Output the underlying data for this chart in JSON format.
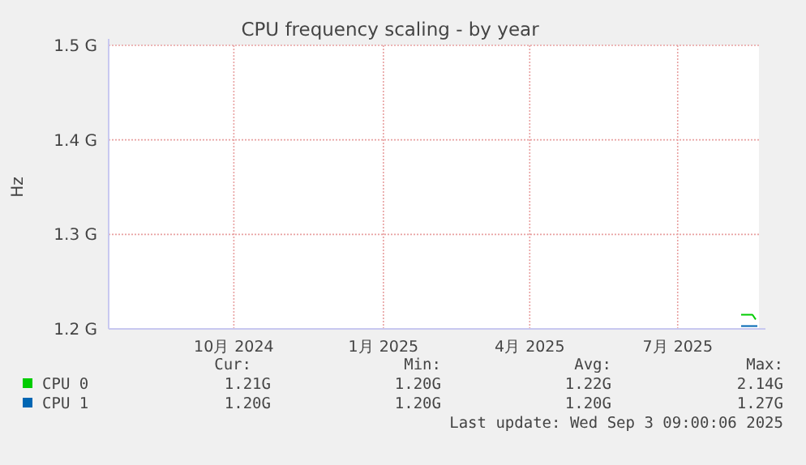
{
  "chart_data": {
    "type": "line",
    "title": "CPU frequency scaling - by year",
    "ylabel": "Hz",
    "xlim": [
      "2024-07-31",
      "2025-09-04"
    ],
    "xticks": [
      {
        "value": "2024-10-16",
        "label": "10月 2024"
      },
      {
        "value": "2025-01-16",
        "label": "1月 2025"
      },
      {
        "value": "2025-04-16",
        "label": "4月 2025"
      },
      {
        "value": "2025-07-16",
        "label": "7月 2025"
      }
    ],
    "ylim": [
      1.2,
      1.5
    ],
    "yticks": [
      {
        "value": 1.2,
        "label": "1.2 G"
      },
      {
        "value": 1.3,
        "label": "1.3 G"
      },
      {
        "value": 1.4,
        "label": "1.4 G"
      },
      {
        "value": 1.5,
        "label": "1.5 G"
      }
    ],
    "grid": true,
    "legend": "bottom",
    "series": [
      {
        "name": "CPU 0",
        "color": "#00cc00",
        "x": [
          "2025-08-24",
          "2025-08-31",
          "2025-09-02"
        ],
        "values": [
          1.215,
          1.215,
          1.21
        ]
      },
      {
        "name": "CPU 1",
        "color": "#0066b3",
        "x": [
          "2025-08-24",
          "2025-08-31",
          "2025-09-03"
        ],
        "values": [
          1.203,
          1.203,
          1.203
        ]
      }
    ],
    "annotations": [
      "Cur:",
      "Min:",
      "Avg:",
      "Max:",
      "1.21G",
      "1.20G",
      "1.22G",
      "2.14G",
      "1.20G",
      "1.20G",
      "1.20G",
      "1.27G",
      "Last update: Wed Sep  3 09:00:06 2025"
    ]
  }
}
